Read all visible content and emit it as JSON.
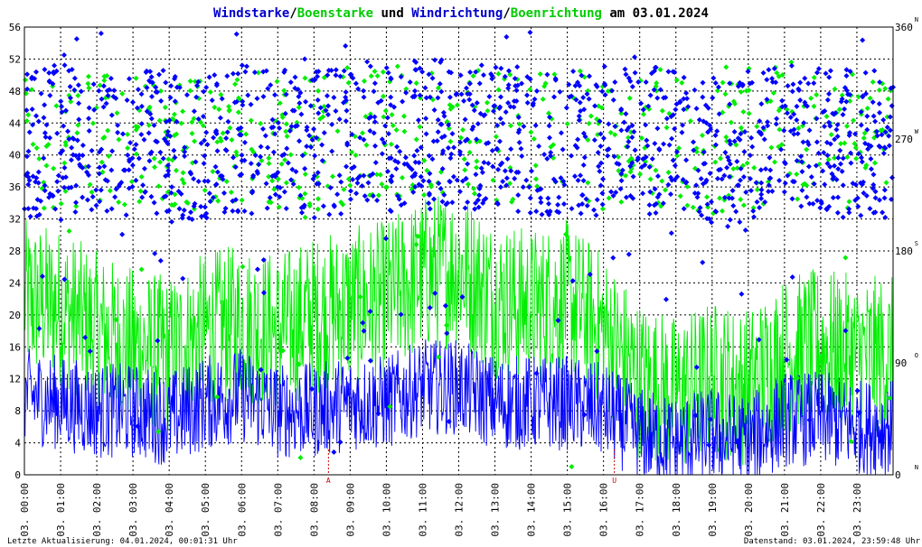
{
  "chart_data": {
    "type": "line",
    "title_parts": [
      {
        "text": "Windstarke",
        "color": "#0000cc"
      },
      {
        "text": "/",
        "color": "#000000"
      },
      {
        "text": "Boenstarke",
        "color": "#00cc00"
      },
      {
        "text": " und ",
        "color": "#000000"
      },
      {
        "text": "Windrichtung",
        "color": "#0000cc"
      },
      {
        "text": "/",
        "color": "#000000"
      },
      {
        "text": "Boenrichtung",
        "color": "#00cc00"
      },
      {
        "text": " am 03.01.2024",
        "color": "#000000"
      }
    ],
    "ylim_left": [
      0,
      56
    ],
    "y_ticks_left": [
      "0",
      "4",
      "8",
      "12",
      "16",
      "20",
      "24",
      "28",
      "32",
      "36",
      "40",
      "44",
      "48",
      "52",
      "56"
    ],
    "ylim_right": [
      0,
      360
    ],
    "y_ticks_right": [
      {
        "value": 0,
        "label": "0",
        "dir": "N"
      },
      {
        "value": 90,
        "label": "90",
        "dir": "O"
      },
      {
        "value": 180,
        "label": "180",
        "dir": "S"
      },
      {
        "value": 270,
        "label": "270",
        "dir": "W"
      },
      {
        "value": 360,
        "label": "360",
        "dir": "N"
      }
    ],
    "x_tick_labels": [
      "03. 00:00",
      "03. 01:00",
      "03. 02:00",
      "03. 03:00",
      "03. 04:00",
      "03. 05:00",
      "03. 06:00",
      "03. 07:00",
      "03. 08:00",
      "03. 09:00",
      "03. 10:00",
      "03. 11:00",
      "03. 12:00",
      "03. 13:00",
      "03. 14:00",
      "03. 15:00",
      "03. 16:00",
      "03. 17:00",
      "03. 18:00",
      "03. 19:00",
      "03. 20:00",
      "03. 21:00",
      "03. 22:00",
      "03. 23:00"
    ],
    "hours": 24,
    "markers": [
      {
        "label": "A",
        "hour": 8.4
      },
      {
        "label": "U",
        "hour": 16.3
      }
    ],
    "series": [
      {
        "name": "Windstarke",
        "color": "#0000ff",
        "kind": "line",
        "hourly_mean": [
          10,
          9,
          8,
          8,
          7,
          9,
          10,
          8,
          8,
          9,
          9,
          11,
          11,
          9,
          9,
          9,
          8,
          5,
          4,
          5,
          4,
          7,
          7,
          6
        ]
      },
      {
        "name": "Boenstarke",
        "color": "#00ee00",
        "kind": "line",
        "hourly_mean": [
          22,
          21,
          18,
          16,
          15,
          18,
          19,
          18,
          20,
          21,
          22,
          25,
          26,
          22,
          21,
          22,
          18,
          12,
          10,
          12,
          11,
          15,
          16,
          15
        ]
      },
      {
        "name": "Windrichtung",
        "color": "#0000ff",
        "kind": "points",
        "hourly_mean_deg": [
          265,
          270,
          265,
          268,
          262,
          265,
          270,
          268,
          265,
          270,
          270,
          275,
          275,
          270,
          268,
          270,
          265,
          270,
          268,
          260,
          255,
          275,
          270,
          265
        ]
      },
      {
        "name": "Boenrichtung",
        "color": "#00ee00",
        "kind": "points",
        "hourly_mean_deg": [
          268,
          270,
          268,
          270,
          265,
          268,
          272,
          270,
          268,
          272,
          272,
          278,
          278,
          272,
          270,
          272,
          268,
          272,
          270,
          262,
          258,
          278,
          272,
          268
        ]
      }
    ],
    "grid": true
  },
  "footer": {
    "left": "Letzte Aktualisierung: 04.01.2024, 00:01:31 Uhr",
    "right": "Datenstand: 03.01.2024, 23:59:48 Uhr"
  }
}
